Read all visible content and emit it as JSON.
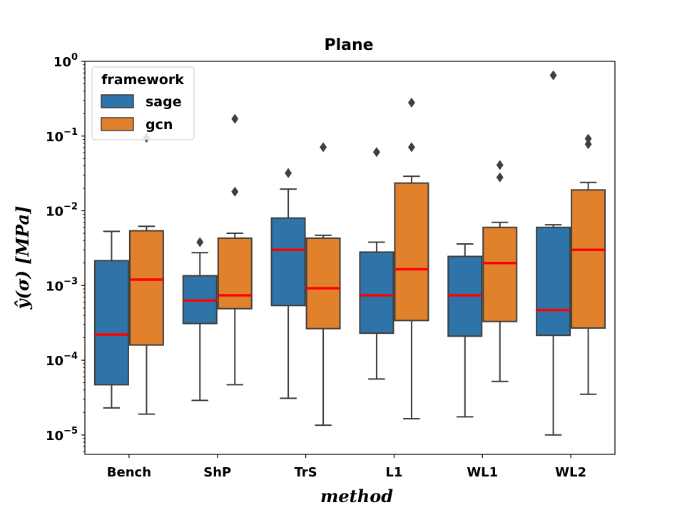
{
  "chart_data": {
    "type": "box",
    "title": "Plane",
    "xlabel": "method",
    "ylabel": "ŷ(σ) [MPa]",
    "yscale": "log",
    "ylim": [
      5.5e-06,
      1.0
    ],
    "yticks": [
      {
        "value": 1e-05,
        "base": "10",
        "exp": "−5"
      },
      {
        "value": 0.0001,
        "base": "10",
        "exp": "−4"
      },
      {
        "value": 0.001,
        "base": "10",
        "exp": "−3"
      },
      {
        "value": 0.01,
        "base": "10",
        "exp": "−2"
      },
      {
        "value": 0.1,
        "base": "10",
        "exp": "−1"
      },
      {
        "value": 1,
        "base": "10",
        "exp": "0"
      }
    ],
    "categories": [
      "Bench",
      "ShP",
      "TrS",
      "L1",
      "WL1",
      "WL2"
    ],
    "legend": {
      "title": "framework",
      "position": "top-left"
    },
    "series": [
      {
        "name": "sage",
        "color": "#2f74a8",
        "boxes": [
          {
            "whislo": 2.3e-05,
            "q1": 4.7e-05,
            "med": 0.00022,
            "q3": 0.00215,
            "whishi": 0.0053,
            "fliers": []
          },
          {
            "whislo": 2.9e-05,
            "q1": 0.00031,
            "med": 0.00063,
            "q3": 0.00135,
            "whishi": 0.00275,
            "fliers": [
              0.0038
            ]
          },
          {
            "whislo": 3.1e-05,
            "q1": 0.00054,
            "med": 0.003,
            "q3": 0.008,
            "whishi": 0.0195,
            "fliers": [
              0.032
            ]
          },
          {
            "whislo": 5.6e-05,
            "q1": 0.00023,
            "med": 0.00074,
            "q3": 0.0028,
            "whishi": 0.0038,
            "fliers": [
              0.061
            ]
          },
          {
            "whislo": 1.75e-05,
            "q1": 0.00021,
            "med": 0.00074,
            "q3": 0.00245,
            "whishi": 0.0036,
            "fliers": []
          },
          {
            "whislo": 1e-05,
            "q1": 0.000215,
            "med": 0.00047,
            "q3": 0.006,
            "whishi": 0.0065,
            "fliers": [
              0.65
            ]
          }
        ]
      },
      {
        "name": "gcn",
        "color": "#e1812c",
        "boxes": [
          {
            "whislo": 1.9e-05,
            "q1": 0.00016,
            "med": 0.0012,
            "q3": 0.0054,
            "whishi": 0.0062,
            "fliers": [
              0.095
            ]
          },
          {
            "whislo": 4.7e-05,
            "q1": 0.00049,
            "med": 0.00074,
            "q3": 0.0043,
            "whishi": 0.005,
            "fliers": [
              0.018,
              0.17
            ]
          },
          {
            "whislo": 1.35e-05,
            "q1": 0.000265,
            "med": 0.00092,
            "q3": 0.0043,
            "whishi": 0.0047,
            "fliers": [
              0.071
            ]
          },
          {
            "whislo": 1.65e-05,
            "q1": 0.00034,
            "med": 0.00165,
            "q3": 0.0235,
            "whishi": 0.029,
            "fliers": [
              0.071,
              0.28
            ]
          },
          {
            "whislo": 5.2e-05,
            "q1": 0.00033,
            "med": 0.002,
            "q3": 0.006,
            "whishi": 0.007,
            "fliers": [
              0.028,
              0.041
            ]
          },
          {
            "whislo": 3.5e-05,
            "q1": 0.00027,
            "med": 0.003,
            "q3": 0.019,
            "whishi": 0.024,
            "fliers": [
              0.078,
              0.092
            ]
          }
        ]
      }
    ],
    "median_color": "#ff0000",
    "line_color": "#3f3f3f",
    "flier_color": "#3f3f3f"
  }
}
